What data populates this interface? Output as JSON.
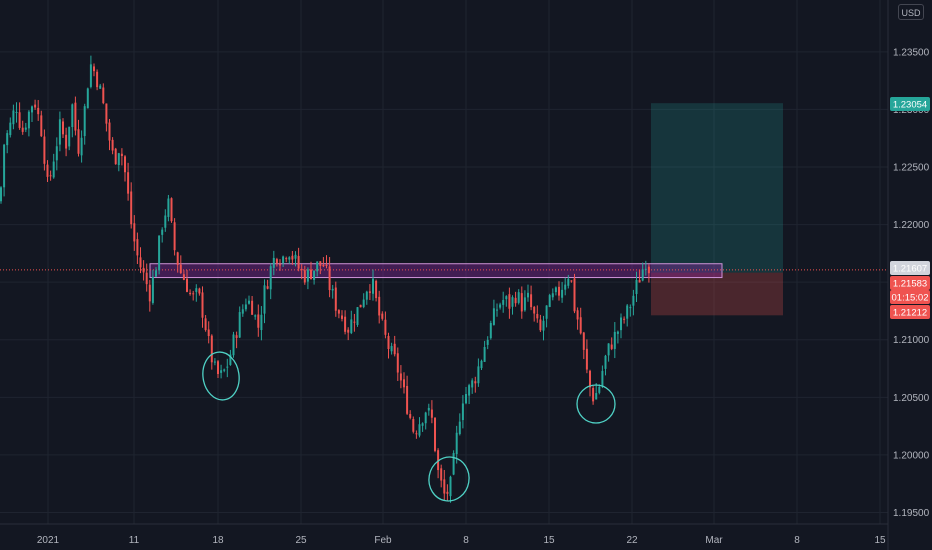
{
  "toolbar": {
    "currency": "USD"
  },
  "colors": {
    "background": "#131722",
    "up": "#26a69a",
    "down": "#ef5350",
    "grid": "#1f2430",
    "zone": "#9c27b0",
    "target": "#26a69a",
    "stop": "#ef5350",
    "annotation": "#4fd1c5"
  },
  "chart_data": {
    "type": "candlestick",
    "symbol_quote": "USD",
    "grid": true,
    "ylim": [
      1.194,
      1.2395
    ],
    "y_ticks": [
      "1.23500",
      "1.23000",
      "1.22500",
      "1.22000",
      "1.21500",
      "1.21000",
      "1.20500",
      "1.20000",
      "1.19500"
    ],
    "x_ticks": [
      "2021",
      "11",
      "18",
      "25",
      "Feb",
      "8",
      "15",
      "22",
      "Mar",
      "8",
      "15"
    ],
    "price_badges": [
      {
        "label": "1.23054",
        "value": 1.23054,
        "color": "#26a69a"
      },
      {
        "label": "1.21607",
        "value": 1.21607,
        "color": "#d1d4dc"
      },
      {
        "label": "1.21583",
        "value": 1.21583,
        "color": "#ef5350"
      },
      {
        "label": "01:15:02",
        "color": "#ef5350"
      },
      {
        "label": "1.21212",
        "value": 1.21212,
        "color": "#ef5350"
      }
    ],
    "current_price": 1.21607,
    "resistance_zone": {
      "top": 1.2166,
      "bottom": 1.2154
    },
    "position": {
      "entry": 1.21583,
      "target": 1.23054,
      "stop": 1.21212
    },
    "price_path": [
      [
        0,
        1.222
      ],
      [
        4,
        1.227
      ],
      [
        10,
        1.2285
      ],
      [
        16,
        1.2305
      ],
      [
        22,
        1.228
      ],
      [
        28,
        1.2295
      ],
      [
        34,
        1.231
      ],
      [
        42,
        1.228
      ],
      [
        48,
        1.223
      ],
      [
        54,
        1.226
      ],
      [
        60,
        1.2285
      ],
      [
        66,
        1.227
      ],
      [
        72,
        1.2305
      ],
      [
        78,
        1.2265
      ],
      [
        84,
        1.2295
      ],
      [
        90,
        1.234
      ],
      [
        96,
        1.233
      ],
      [
        102,
        1.231
      ],
      [
        108,
        1.228
      ],
      [
        114,
        1.2255
      ],
      [
        120,
        1.227
      ],
      [
        126,
        1.224
      ],
      [
        132,
        1.2195
      ],
      [
        138,
        1.217
      ],
      [
        144,
        1.2155
      ],
      [
        150,
        1.214
      ],
      [
        156,
        1.2165
      ],
      [
        162,
        1.22
      ],
      [
        168,
        1.222
      ],
      [
        174,
        1.218
      ],
      [
        180,
        1.216
      ],
      [
        186,
        1.215
      ],
      [
        192,
        1.2135
      ],
      [
        198,
        1.214
      ],
      [
        204,
        1.212
      ],
      [
        210,
        1.209
      ],
      [
        216,
        1.207
      ],
      [
        222,
        1.2068
      ],
      [
        228,
        1.208
      ],
      [
        234,
        1.21
      ],
      [
        240,
        1.212
      ],
      [
        246,
        1.2135
      ],
      [
        252,
        1.213
      ],
      [
        258,
        1.211
      ],
      [
        264,
        1.214
      ],
      [
        270,
        1.216
      ],
      [
        276,
        1.2175
      ],
      [
        282,
        1.217
      ],
      [
        288,
        1.218
      ],
      [
        294,
        1.217
      ],
      [
        300,
        1.216
      ],
      [
        306,
        1.2155
      ],
      [
        312,
        1.216
      ],
      [
        318,
        1.2165
      ],
      [
        324,
        1.2165
      ],
      [
        330,
        1.2145
      ],
      [
        336,
        1.213
      ],
      [
        342,
        1.212
      ],
      [
        348,
        1.211
      ],
      [
        354,
        1.212
      ],
      [
        360,
        1.213
      ],
      [
        366,
        1.2145
      ],
      [
        372,
        1.215
      ],
      [
        378,
        1.2125
      ],
      [
        384,
        1.2105
      ],
      [
        390,
        1.209
      ],
      [
        396,
        1.208
      ],
      [
        402,
        1.206
      ],
      [
        408,
        1.204
      ],
      [
        414,
        1.202
      ],
      [
        420,
        1.203
      ],
      [
        426,
        1.204
      ],
      [
        432,
        1.203
      ],
      [
        438,
        1.1985
      ],
      [
        444,
        1.1965
      ],
      [
        450,
        1.197
      ],
      [
        456,
        1.201
      ],
      [
        462,
        1.205
      ],
      [
        468,
        1.2055
      ],
      [
        474,
        1.2065
      ],
      [
        480,
        1.208
      ],
      [
        486,
        1.21
      ],
      [
        492,
        1.2115
      ],
      [
        498,
        1.213
      ],
      [
        504,
        1.2135
      ],
      [
        510,
        1.213
      ],
      [
        516,
        1.214
      ],
      [
        522,
        1.213
      ],
      [
        528,
        1.2135
      ],
      [
        534,
        1.212
      ],
      [
        540,
        1.2105
      ],
      [
        546,
        1.2125
      ],
      [
        552,
        1.2135
      ],
      [
        558,
        1.214
      ],
      [
        564,
        1.215
      ],
      [
        570,
        1.216
      ],
      [
        574,
        1.213
      ],
      [
        580,
        1.211
      ],
      [
        586,
        1.2075
      ],
      [
        592,
        1.205
      ],
      [
        598,
        1.2055
      ],
      [
        604,
        1.208
      ],
      [
        610,
        1.2095
      ],
      [
        616,
        1.2105
      ],
      [
        622,
        1.2115
      ],
      [
        628,
        1.2125
      ],
      [
        634,
        1.214
      ],
      [
        640,
        1.2155
      ],
      [
        646,
        1.217
      ],
      [
        650,
        1.216
      ]
    ]
  }
}
